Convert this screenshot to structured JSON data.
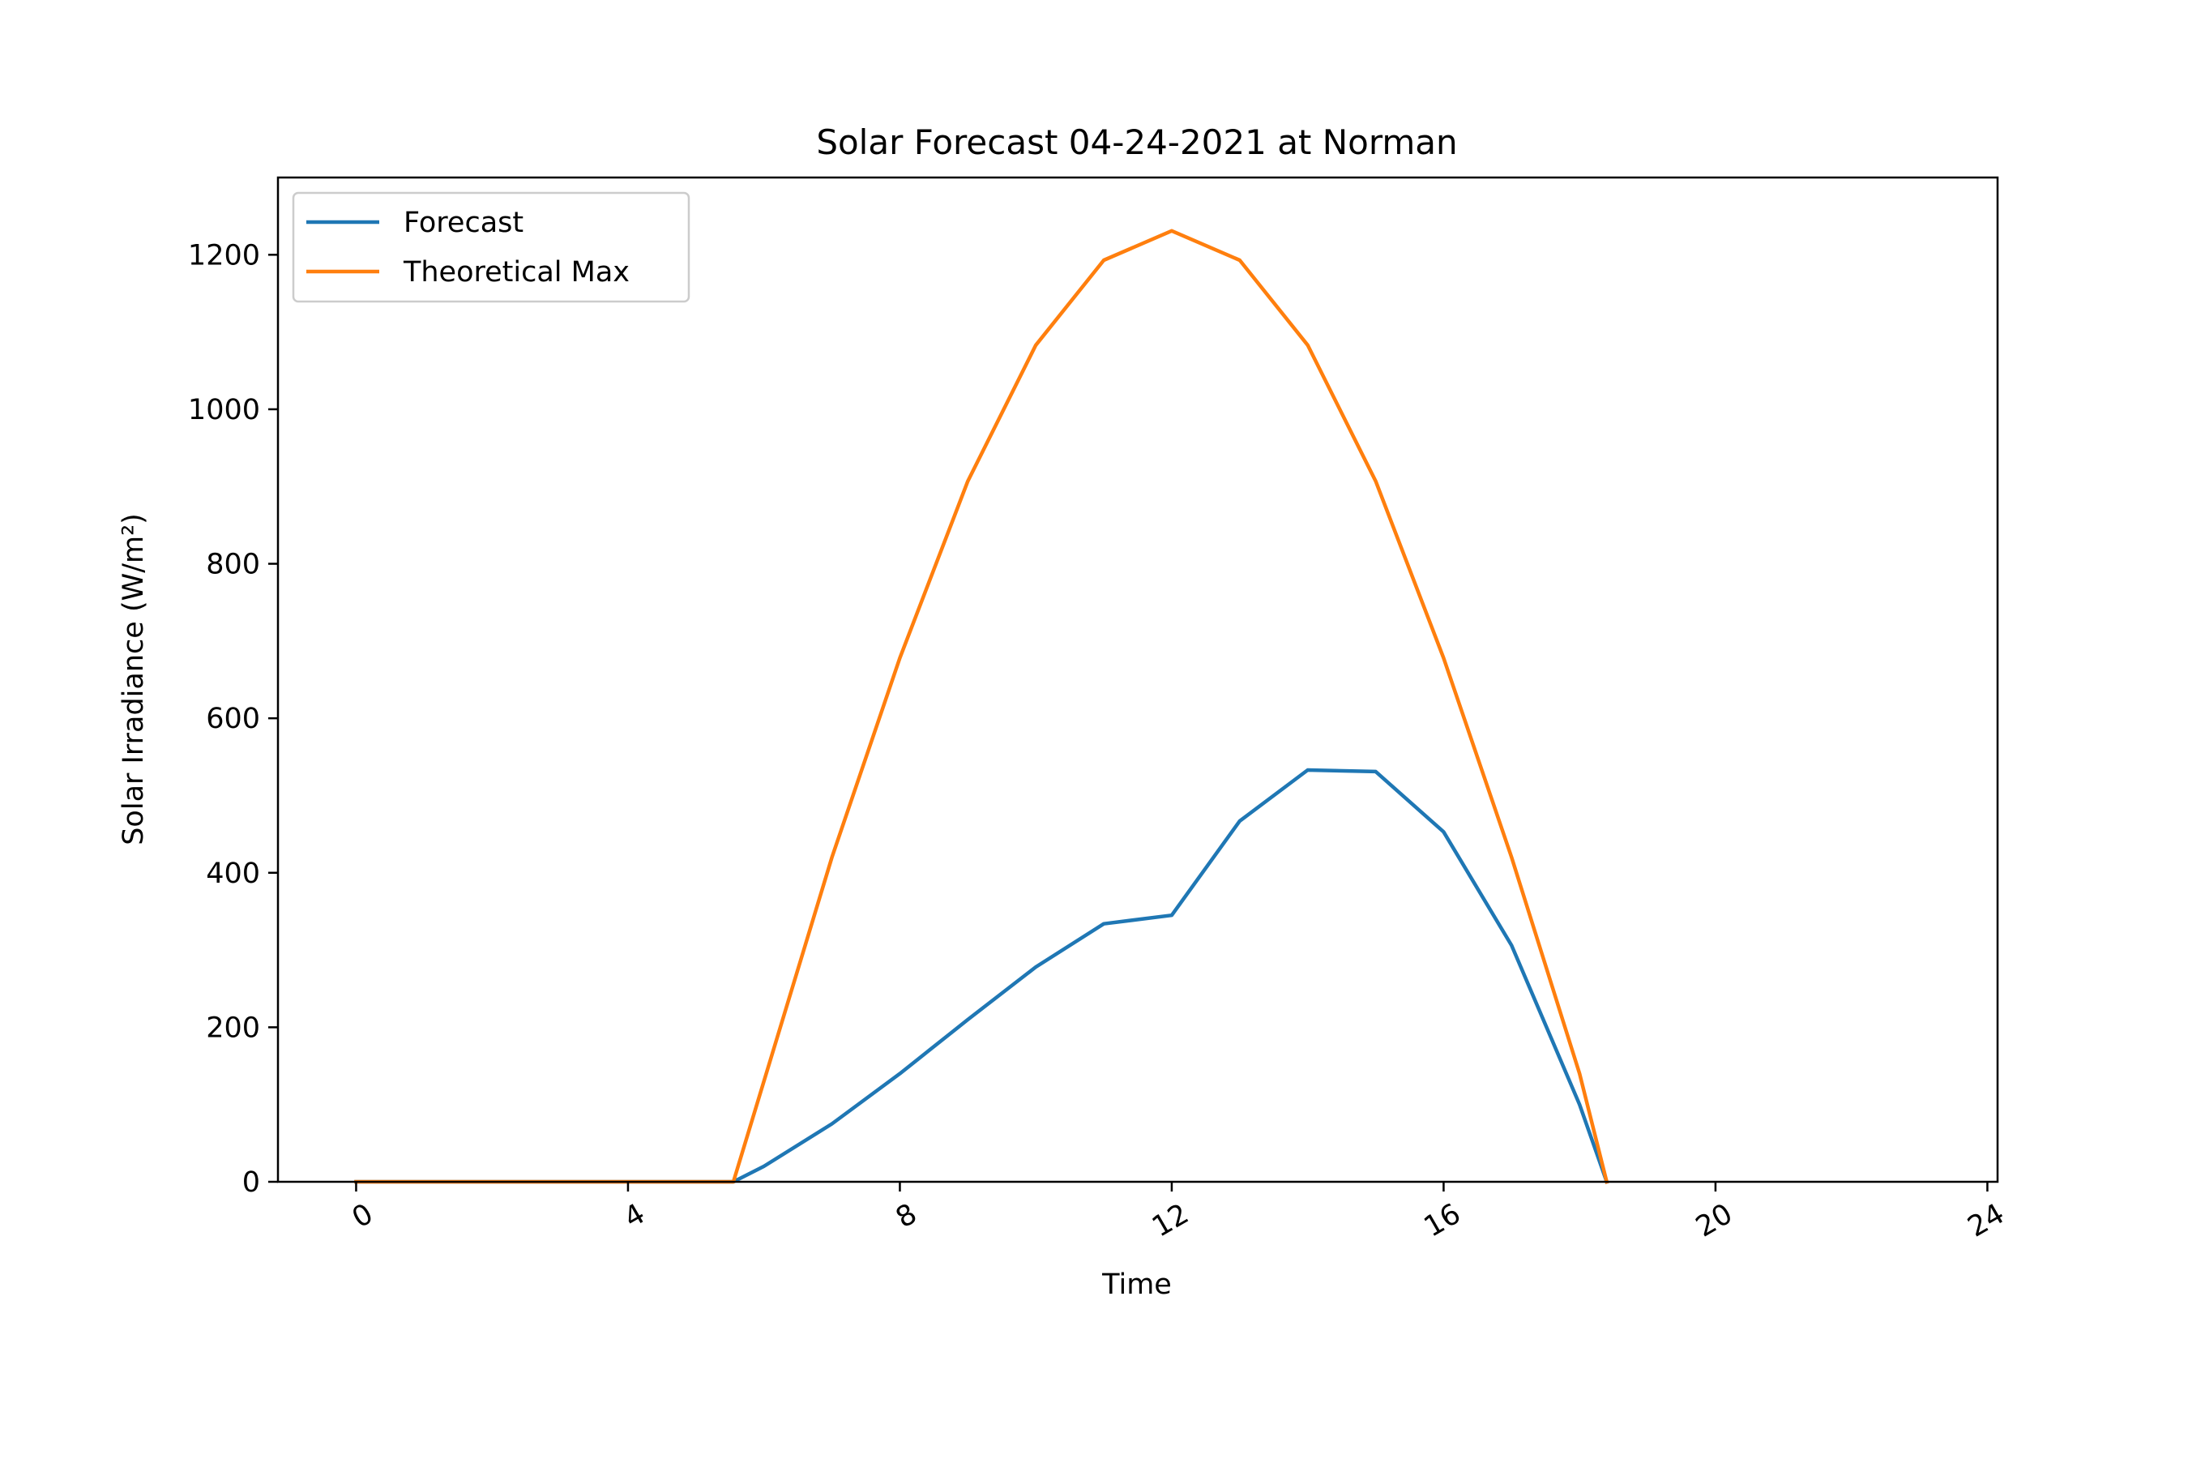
{
  "chart_data": {
    "type": "line",
    "title": "Solar Forecast 04-24-2021 at Norman",
    "xlabel": "Time",
    "ylabel": "Solar Irradiance (W/m²)",
    "xlim": [
      -1.15,
      24.15
    ],
    "ylim": [
      0,
      1300
    ],
    "xticks": [
      0,
      4,
      8,
      12,
      16,
      20,
      24
    ],
    "yticks": [
      0,
      200,
      400,
      600,
      800,
      1000,
      1200
    ],
    "grid": false,
    "legend_position": "upper-left",
    "series": [
      {
        "name": "Forecast",
        "color": "#1f77b4",
        "x": [
          0,
          5.55,
          6,
          7,
          8,
          9,
          10,
          11,
          12,
          13,
          14,
          15,
          16,
          17,
          18,
          18.4
        ],
        "y": [
          0,
          0,
          20,
          75,
          140,
          210,
          278,
          334,
          345,
          467,
          533,
          531,
          453,
          306,
          100,
          0
        ]
      },
      {
        "name": "Theoretical Max",
        "color": "#ff7f0e",
        "x": [
          0,
          5.55,
          7,
          8,
          9,
          10,
          11,
          12,
          13,
          14,
          15,
          16,
          17,
          18,
          18.4
        ],
        "y": [
          0,
          0,
          420,
          678,
          907,
          1083,
          1193,
          1231,
          1193,
          1083,
          907,
          678,
          420,
          140,
          0
        ]
      }
    ]
  }
}
